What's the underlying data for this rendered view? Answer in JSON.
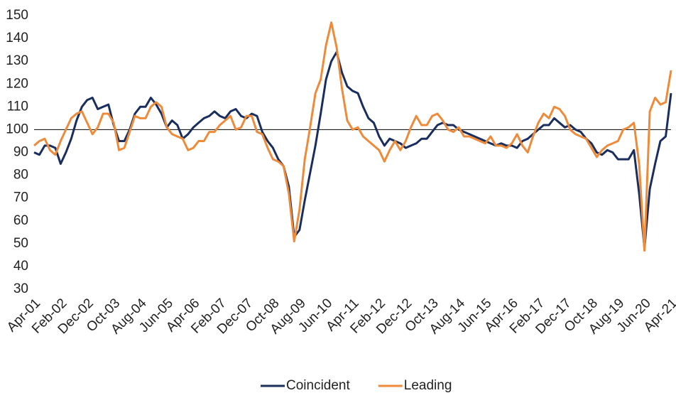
{
  "chart_data": {
    "type": "line",
    "categories": [
      "Apr-01",
      null,
      null,
      null,
      null,
      "Feb-02",
      null,
      null,
      null,
      null,
      "Dec-02",
      null,
      null,
      null,
      null,
      "Oct-03",
      null,
      null,
      null,
      null,
      "Aug-04",
      null,
      null,
      null,
      null,
      "Jun-05",
      null,
      null,
      null,
      null,
      "Apr-06",
      null,
      null,
      null,
      null,
      "Feb-07",
      null,
      null,
      null,
      null,
      "Dec-07",
      null,
      null,
      null,
      null,
      "Oct-08",
      null,
      null,
      null,
      null,
      "Aug-09",
      null,
      null,
      null,
      null,
      "Jun-10",
      null,
      null,
      null,
      null,
      "Apr-11",
      null,
      null,
      null,
      null,
      "Feb-12",
      null,
      null,
      null,
      null,
      "Dec-12",
      null,
      null,
      null,
      null,
      "Oct-13",
      null,
      null,
      null,
      null,
      "Aug-14",
      null,
      null,
      null,
      null,
      "Jun-15",
      null,
      null,
      null,
      null,
      "Apr-16",
      null,
      null,
      null,
      null,
      "Feb-17",
      null,
      null,
      null,
      null,
      "Dec-17",
      null,
      null,
      null,
      null,
      "Oct-18",
      null,
      null,
      null,
      null,
      "Aug-19",
      null,
      null,
      null,
      null,
      "Jun-20",
      null,
      null,
      null,
      null,
      "Apr-21"
    ],
    "series": [
      {
        "name": "Coincident",
        "color": "#1a2e5e",
        "values": [
          90,
          89,
          93,
          93,
          92,
          85,
          90,
          96,
          104,
          110,
          113,
          114,
          109,
          110,
          111,
          102,
          95,
          95,
          100,
          107,
          110,
          110,
          114,
          111,
          107,
          101,
          104,
          102,
          96,
          98,
          101,
          103,
          105,
          106,
          108,
          106,
          105,
          108,
          109,
          106,
          105,
          107,
          106,
          99,
          95,
          92,
          87,
          84,
          75,
          53,
          56,
          69,
          81,
          93,
          107,
          122,
          130,
          134,
          125,
          119,
          117,
          116,
          110,
          105,
          103,
          97,
          93,
          96,
          95,
          94,
          92,
          93,
          94,
          96,
          96,
          99,
          102,
          103,
          102,
          102,
          100,
          99,
          98,
          97,
          96,
          95,
          94,
          93,
          94,
          93,
          93,
          92,
          95,
          96,
          98,
          100,
          102,
          102,
          105,
          103,
          101,
          102,
          100,
          99,
          96,
          94,
          90,
          89,
          91,
          90,
          87,
          87,
          87,
          91,
          72,
          48,
          74,
          85,
          95,
          97,
          116
        ]
      },
      {
        "name": "Leading",
        "color": "#ed8b3a",
        "values": [
          93,
          95,
          96,
          91,
          89,
          95,
          100,
          105,
          107,
          108,
          103,
          98,
          101,
          107,
          107,
          103,
          91,
          92,
          99,
          106,
          105,
          105,
          110,
          112,
          110,
          101,
          98,
          97,
          96,
          91,
          92,
          95,
          95,
          99,
          99,
          102,
          104,
          106,
          100,
          101,
          106,
          106,
          99,
          98,
          92,
          87,
          86,
          84,
          72,
          51,
          65,
          87,
          101,
          116,
          122,
          137,
          147,
          136,
          118,
          104,
          100,
          101,
          97,
          95,
          93,
          91,
          86,
          91,
          95,
          91,
          95,
          101,
          106,
          102,
          102,
          106,
          107,
          104,
          100,
          99,
          101,
          97,
          97,
          96,
          95,
          94,
          97,
          93,
          93,
          92,
          94,
          98,
          93,
          90,
          97,
          103,
          107,
          105,
          110,
          109,
          106,
          100,
          98,
          97,
          96,
          92,
          88,
          91,
          93,
          94,
          95,
          100,
          101,
          103,
          85,
          47,
          108,
          114,
          111,
          112,
          126
        ]
      }
    ],
    "ylim": [
      30,
      150
    ],
    "yticks": [
      30,
      40,
      50,
      60,
      70,
      80,
      90,
      100,
      110,
      120,
      130,
      140,
      150
    ],
    "hline": 100,
    "legend": "bottom"
  }
}
